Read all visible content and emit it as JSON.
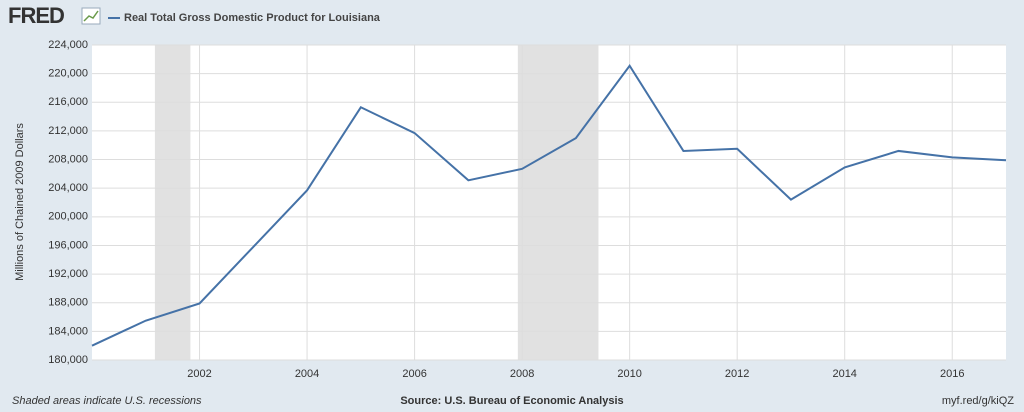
{
  "chart_data": {
    "type": "line",
    "logo": "FRED",
    "series": [
      {
        "name": "Real Total Gross Domestic Product for Louisiana",
        "color": "#4572a7",
        "values": [
          182000,
          185500,
          187900,
          195800,
          203700,
          215300,
          211700,
          205100,
          206700,
          211000,
          221100,
          209200,
          209500,
          202400,
          206900,
          209200,
          208300,
          207900
        ]
      }
    ],
    "x": [
      2000,
      2001,
      2002,
      2003,
      2004,
      2005,
      2006,
      2007,
      2008,
      2009,
      2010,
      2011,
      2012,
      2013,
      2014,
      2015,
      2016,
      2017
    ],
    "xlim": [
      2000,
      2017
    ],
    "xticks": [
      2002,
      2004,
      2006,
      2008,
      2010,
      2012,
      2014,
      2016
    ],
    "ylim": [
      180000,
      224000
    ],
    "yticks": [
      {
        "value": 180000,
        "label": "180,000"
      },
      {
        "value": 184000,
        "label": "184,000"
      },
      {
        "value": 188000,
        "label": "188,000"
      },
      {
        "value": 192000,
        "label": "192,000"
      },
      {
        "value": 196000,
        "label": "196,000"
      },
      {
        "value": 200000,
        "label": "200,000"
      },
      {
        "value": 204000,
        "label": "204,000"
      },
      {
        "value": 208000,
        "label": "208,000"
      },
      {
        "value": 212000,
        "label": "212,000"
      },
      {
        "value": 216000,
        "label": "216,000"
      },
      {
        "value": 220000,
        "label": "220,000"
      },
      {
        "value": 224000,
        "label": "224,000"
      }
    ],
    "ylabel": "Millions of Chained 2009 Dollars",
    "recessions": [
      [
        2001.17,
        2001.83
      ],
      [
        2007.92,
        2009.42
      ]
    ],
    "recession_color": "#e1e1e1",
    "grid": true,
    "footnote": "Shaded areas indicate U.S. recessions",
    "source": "Source: U.S. Bureau of Economic Analysis",
    "url": "myf.red/g/kiQZ"
  }
}
